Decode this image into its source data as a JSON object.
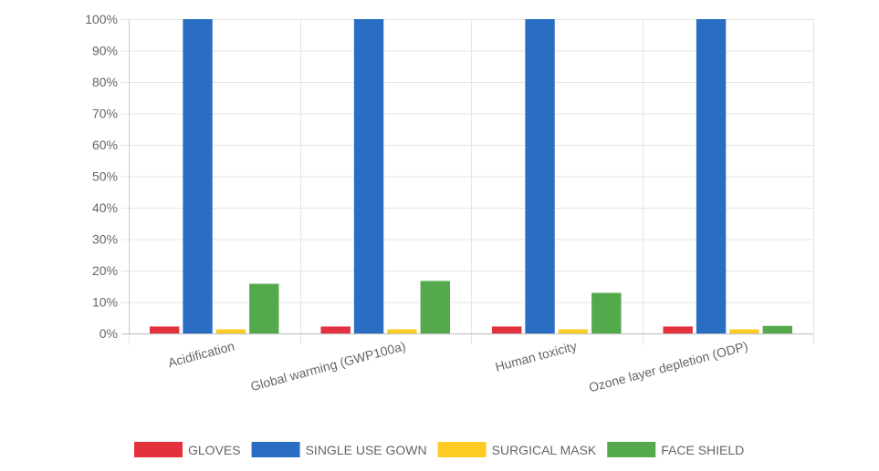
{
  "chart_data": {
    "type": "bar",
    "title": "",
    "xlabel": "",
    "ylabel": "",
    "ylim": [
      0,
      100
    ],
    "y_ticks": [
      "0%",
      "10%",
      "20%",
      "30%",
      "40%",
      "50%",
      "60%",
      "70%",
      "80%",
      "90%",
      "100%"
    ],
    "y_tick_values": [
      0,
      10,
      20,
      30,
      40,
      50,
      60,
      70,
      80,
      90,
      100
    ],
    "grid": true,
    "legend_position": "bottom-center",
    "categories": [
      "Acidification",
      "Global warming (GWP100a)",
      "Human toxicity",
      "Ozone layer depletion (ODP)"
    ],
    "series": [
      {
        "name": "GLOVES",
        "color": "#e3313d",
        "values": [
          2.2,
          2.2,
          2.2,
          2.2
        ]
      },
      {
        "name": "SINGLE USE GOWN",
        "color": "#2a6ec4",
        "values": [
          100,
          100,
          100,
          100
        ]
      },
      {
        "name": "SURGICAL MASK",
        "color": "#fecb24",
        "values": [
          1.3,
          1.3,
          1.3,
          1.3
        ]
      },
      {
        "name": "FACE SHIELD",
        "color": "#53a94c",
        "values": [
          15.8,
          16.7,
          12.9,
          2.4
        ]
      }
    ]
  }
}
